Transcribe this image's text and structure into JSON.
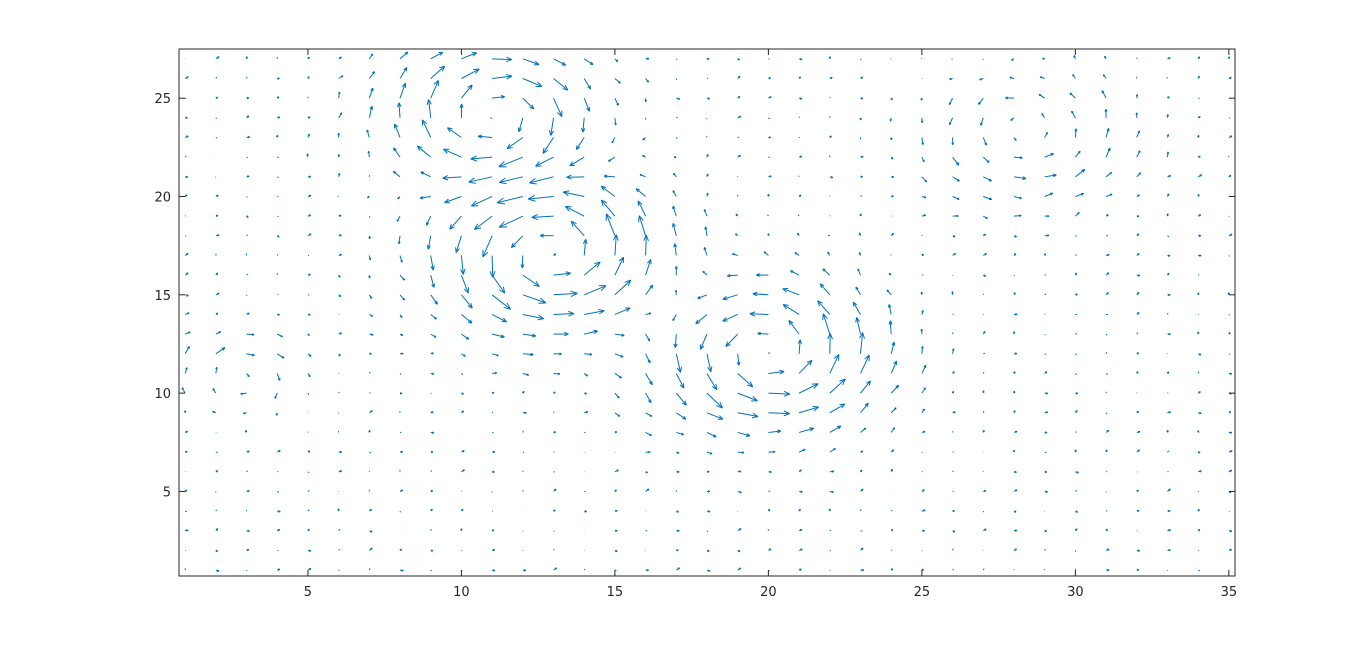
{
  "chart_data": {
    "type": "quiver",
    "title": "",
    "xlabel": "",
    "ylabel": "",
    "xlim": [
      0.8,
      35.2
    ],
    "ylim": [
      0.7,
      27.5
    ],
    "x_ticks": [
      5,
      10,
      15,
      20,
      25,
      30,
      35
    ],
    "y_ticks": [
      5,
      10,
      15,
      20,
      25
    ],
    "grid": false,
    "legend": "none",
    "grid_x": [
      1,
      35
    ],
    "grid_y": [
      1,
      27
    ],
    "color": "#0072bd",
    "axis_color": "#262626",
    "vortices": [
      {
        "x": 13.0,
        "y": 17.0,
        "r": 3.3,
        "strength": 1.15,
        "sign": 1
      },
      {
        "x": 11.0,
        "y": 24.2,
        "r": 3.0,
        "strength": 1.05,
        "sign": -1
      },
      {
        "x": 20.0,
        "y": 12.0,
        "r": 3.2,
        "strength": 1.1,
        "sign": 1
      },
      {
        "x": 2.8,
        "y": 11.0,
        "r": 1.8,
        "strength": 0.75,
        "sign": -1
      },
      {
        "x": 28.5,
        "y": 23.0,
        "r": 3.0,
        "strength": 0.5,
        "sign": 1
      }
    ]
  }
}
